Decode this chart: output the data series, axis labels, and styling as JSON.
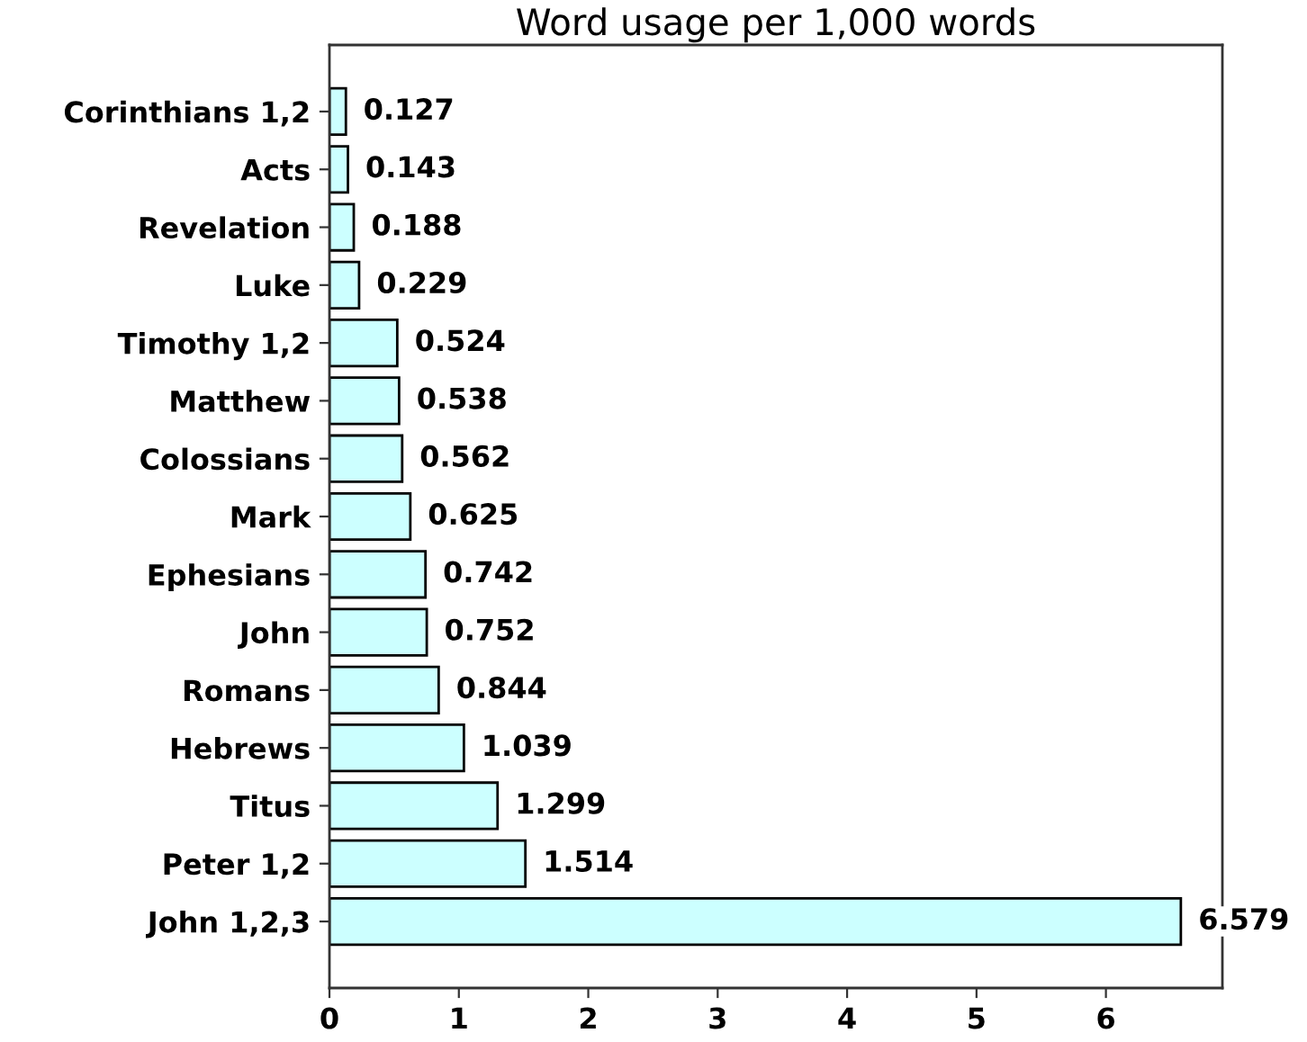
{
  "chart_data": {
    "type": "bar",
    "orientation": "horizontal",
    "title": "Word usage per 1,000 words",
    "categories": [
      "Corinthians 1,2",
      "Acts",
      "Revelation",
      "Luke",
      "Timothy 1,2",
      "Matthew",
      "Colossians",
      "Mark",
      "Ephesians",
      "John",
      "Romans",
      "Hebrews",
      "Titus",
      "Peter 1,2",
      "John 1,2,3"
    ],
    "values": [
      0.127,
      0.143,
      0.188,
      0.229,
      0.524,
      0.538,
      0.562,
      0.625,
      0.742,
      0.752,
      0.844,
      1.039,
      1.299,
      1.514,
      6.579
    ],
    "color": "#ccffff",
    "xlim": [
      0,
      6.9
    ],
    "xticks": [
      0,
      1,
      2,
      3,
      4,
      5,
      6
    ],
    "data_labels": true
  }
}
